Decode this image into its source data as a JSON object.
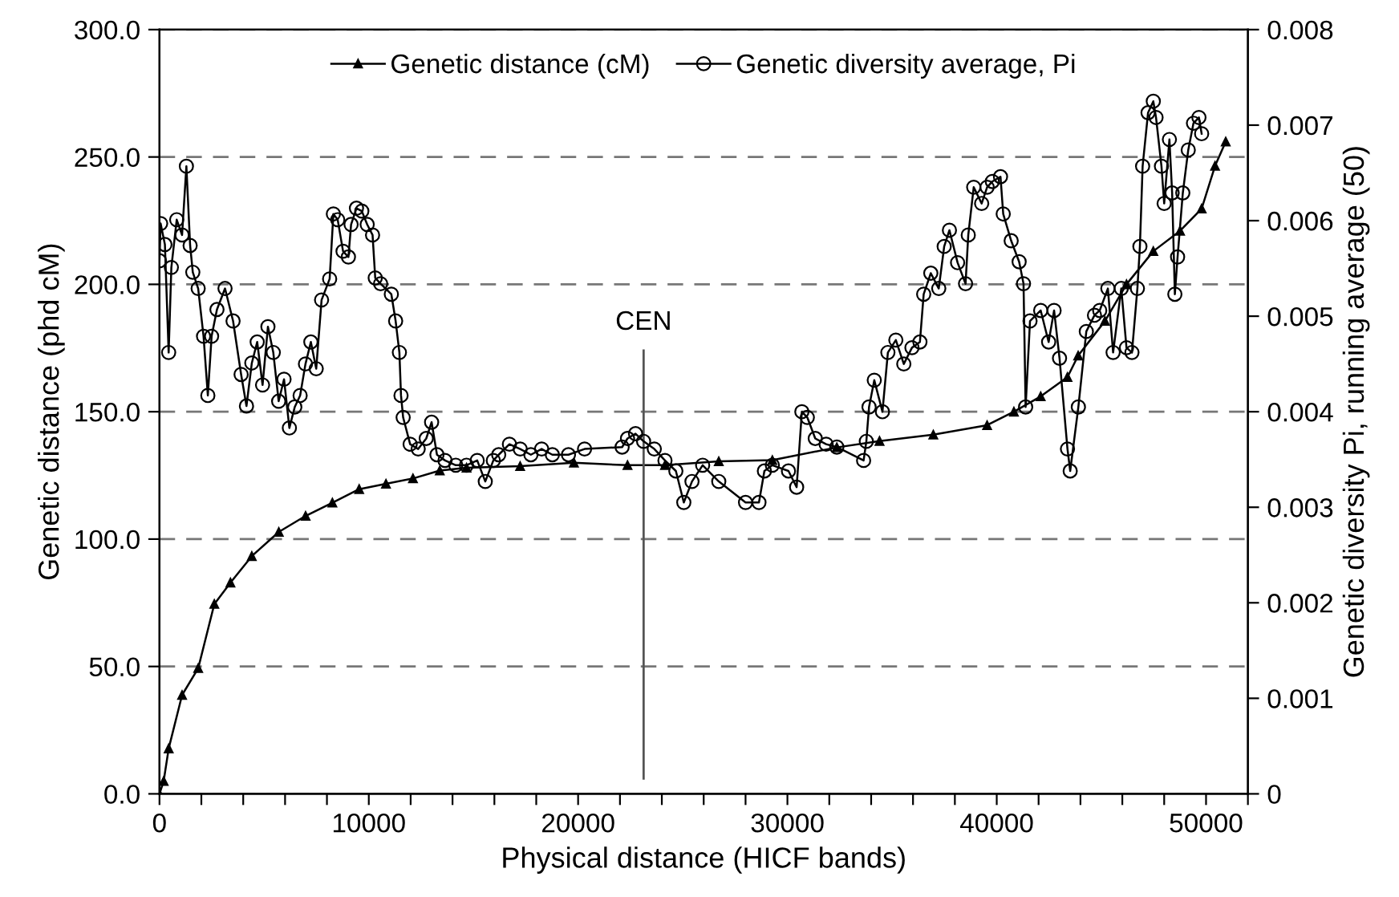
{
  "chart_data": {
    "type": "line",
    "xlabel": "Physical distance (HICF bands)",
    "ylabel": "Genetic distance (phd cM)",
    "y2label": "Genetic diversity Pi, running average (50)",
    "xlim": [
      0,
      52000
    ],
    "xticks": [
      0,
      {
        "value": 2000,
        "label": null
      },
      {
        "value": 4000,
        "label": null
      },
      {
        "value": 6000,
        "label": null
      },
      {
        "value": 8000,
        "label": null
      },
      10000,
      {
        "value": 12000,
        "label": null
      },
      {
        "value": 14000,
        "label": null
      },
      {
        "value": 16000,
        "label": null
      },
      {
        "value": 18000,
        "label": null
      },
      20000,
      {
        "value": 22000,
        "label": null
      },
      {
        "value": 24000,
        "label": null
      },
      {
        "value": 26000,
        "label": null
      },
      {
        "value": 28000,
        "label": null
      },
      30000,
      {
        "value": 32000,
        "label": null
      },
      {
        "value": 34000,
        "label": null
      },
      {
        "value": 36000,
        "label": null
      },
      {
        "value": 38000,
        "label": null
      },
      40000,
      {
        "value": 42000,
        "label": null
      },
      {
        "value": 44000,
        "label": null
      },
      {
        "value": 46000,
        "label": null
      },
      {
        "value": 48000,
        "label": null
      },
      50000,
      {
        "value": 52000,
        "label": null
      }
    ],
    "ylim": [
      0,
      300
    ],
    "yticks": [
      {
        "value": 0,
        "label": "0.0"
      },
      {
        "value": 50,
        "label": "50.0"
      },
      {
        "value": 100,
        "label": "100.0"
      },
      {
        "value": 150,
        "label": "150.0"
      },
      {
        "value": 200,
        "label": "200.0"
      },
      {
        "value": 250,
        "label": "250.0"
      },
      {
        "value": 300,
        "label": "300.0"
      }
    ],
    "y2lim": [
      0,
      0.008
    ],
    "y2ticks": [
      0,
      0.001,
      0.002,
      0.003,
      0.004,
      0.005,
      0.006,
      0.007,
      0.008
    ],
    "grid": "y",
    "legend": "top",
    "line_style": "solid",
    "ref_lines": [
      {
        "axis": "x",
        "value": 23130,
        "label": "CEN",
        "color": "#555555"
      }
    ],
    "series": [
      {
        "name": "Genetic distance (cM)",
        "color": "#000000",
        "marker": "triangle",
        "x": [
          0,
          200,
          440,
          1080,
          1850,
          2620,
          3390,
          4410,
          5700,
          6980,
          8260,
          9540,
          10820,
          12110,
          13390,
          14670,
          17230,
          19800,
          22360,
          24150,
          26720,
          29280,
          32360,
          34400,
          36970,
          39540,
          40820,
          42100,
          43380,
          43890,
          45170,
          46200,
          47480,
          48760,
          49790,
          50430,
          50940
        ],
        "values": [
          0,
          5,
          17.8,
          38.8,
          49.3,
          74.5,
          82.9,
          93.3,
          102.8,
          109.1,
          114.3,
          119.6,
          121.7,
          123.8,
          126.9,
          128,
          128.6,
          130,
          129,
          129,
          130.5,
          131,
          136,
          138.5,
          141,
          144.7,
          150,
          156,
          163.6,
          172,
          185.6,
          200,
          213,
          221,
          229.7,
          246.5,
          256
        ]
      },
      {
        "name": "Genetic diversity average, Pi",
        "color": "#000000",
        "marker": "circle",
        "axis": "y2",
        "x": [
          0,
          54,
          259,
          438,
          567,
          823,
          1079,
          1285,
          1464,
          1592,
          1848,
          2105,
          2310,
          2490,
          2746,
          3131,
          3515,
          3900,
          4156,
          4412,
          4668,
          4925,
          5181,
          5437,
          5694,
          5950,
          6206,
          6463,
          6719,
          6975,
          7232,
          7488,
          7744,
          8129,
          8308,
          8514,
          8770,
          9026,
          9154,
          9411,
          9667,
          9923,
          10180,
          10308,
          10564,
          11077,
          11282,
          11462,
          11539,
          11641,
          11975,
          12360,
          12745,
          13001,
          13257,
          13642,
          14155,
          14667,
          15180,
          15565,
          15950,
          16206,
          16719,
          17232,
          17744,
          18257,
          18770,
          19539,
          20308,
          22103,
          22360,
          22744,
          23129,
          23640,
          24150,
          24670,
          25050,
          25440,
          25950,
          26720,
          28000,
          28640,
          28900,
          29280,
          30050,
          30440,
          30690,
          30950,
          31330,
          31850,
          32360,
          33640,
          33770,
          33900,
          34150,
          34540,
          34800,
          35180,
          35560,
          35950,
          36330,
          36510,
          36850,
          37230,
          37490,
          37740,
          38130,
          38510,
          38640,
          38900,
          39280,
          39540,
          39790,
          40180,
          40310,
          40690,
          41070,
          41280,
          41380,
          41590,
          42100,
          42480,
          42740,
          43000,
          43380,
          43510,
          43900,
          44280,
          44670,
          44920,
          45310,
          45560,
          45950,
          46200,
          46460,
          46720,
          46840,
          46970,
          47230,
          47480,
          47610,
          47870,
          48000,
          48250,
          48380,
          48510,
          48640,
          48890,
          49150,
          49400,
          49660,
          49790
        ],
        "values": [
          0.00558,
          0.00597,
          0.00575,
          0.00462,
          0.00551,
          0.00601,
          0.00585,
          0.00657,
          0.00574,
          0.00546,
          0.00529,
          0.00479,
          0.00417,
          0.00479,
          0.00507,
          0.00529,
          0.00495,
          0.00439,
          0.00406,
          0.00451,
          0.00473,
          0.00428,
          0.00489,
          0.00462,
          0.00411,
          0.00434,
          0.00383,
          0.00405,
          0.00417,
          0.0045,
          0.00473,
          0.00445,
          0.00517,
          0.00539,
          0.00607,
          0.00601,
          0.00568,
          0.00562,
          0.00596,
          0.00613,
          0.0061,
          0.00596,
          0.00585,
          0.0054,
          0.00534,
          0.00523,
          0.00495,
          0.00462,
          0.00417,
          0.00394,
          0.00366,
          0.00361,
          0.00372,
          0.00389,
          0.00355,
          0.00349,
          0.00344,
          0.00344,
          0.00349,
          0.00327,
          0.00349,
          0.00355,
          0.00366,
          0.00361,
          0.00355,
          0.00361,
          0.00355,
          0.00355,
          0.00361,
          0.00363,
          0.00372,
          0.00377,
          0.00369,
          0.00361,
          0.00349,
          0.00338,
          0.00305,
          0.00327,
          0.00344,
          0.00327,
          0.00305,
          0.00305,
          0.00338,
          0.00344,
          0.00338,
          0.00321,
          0.004,
          0.00394,
          0.00372,
          0.00366,
          0.00363,
          0.00349,
          0.00369,
          0.00405,
          0.00433,
          0.004,
          0.00462,
          0.00475,
          0.0045,
          0.00467,
          0.00473,
          0.00523,
          0.00545,
          0.00529,
          0.00573,
          0.0059,
          0.00556,
          0.00534,
          0.00585,
          0.00635,
          0.00618,
          0.00635,
          0.00641,
          0.00646,
          0.00607,
          0.00579,
          0.00557,
          0.00534,
          0.00405,
          0.00495,
          0.00506,
          0.00473,
          0.00506,
          0.00456,
          0.00361,
          0.00338,
          0.00405,
          0.00484,
          0.00501,
          0.00506,
          0.00529,
          0.00462,
          0.00529,
          0.00467,
          0.00462,
          0.00529,
          0.00573,
          0.00657,
          0.00713,
          0.00725,
          0.00708,
          0.00657,
          0.00618,
          0.00685,
          0.00629,
          0.00523,
          0.00562,
          0.00629,
          0.00674,
          0.00702,
          0.00708,
          0.00691
        ]
      }
    ]
  }
}
